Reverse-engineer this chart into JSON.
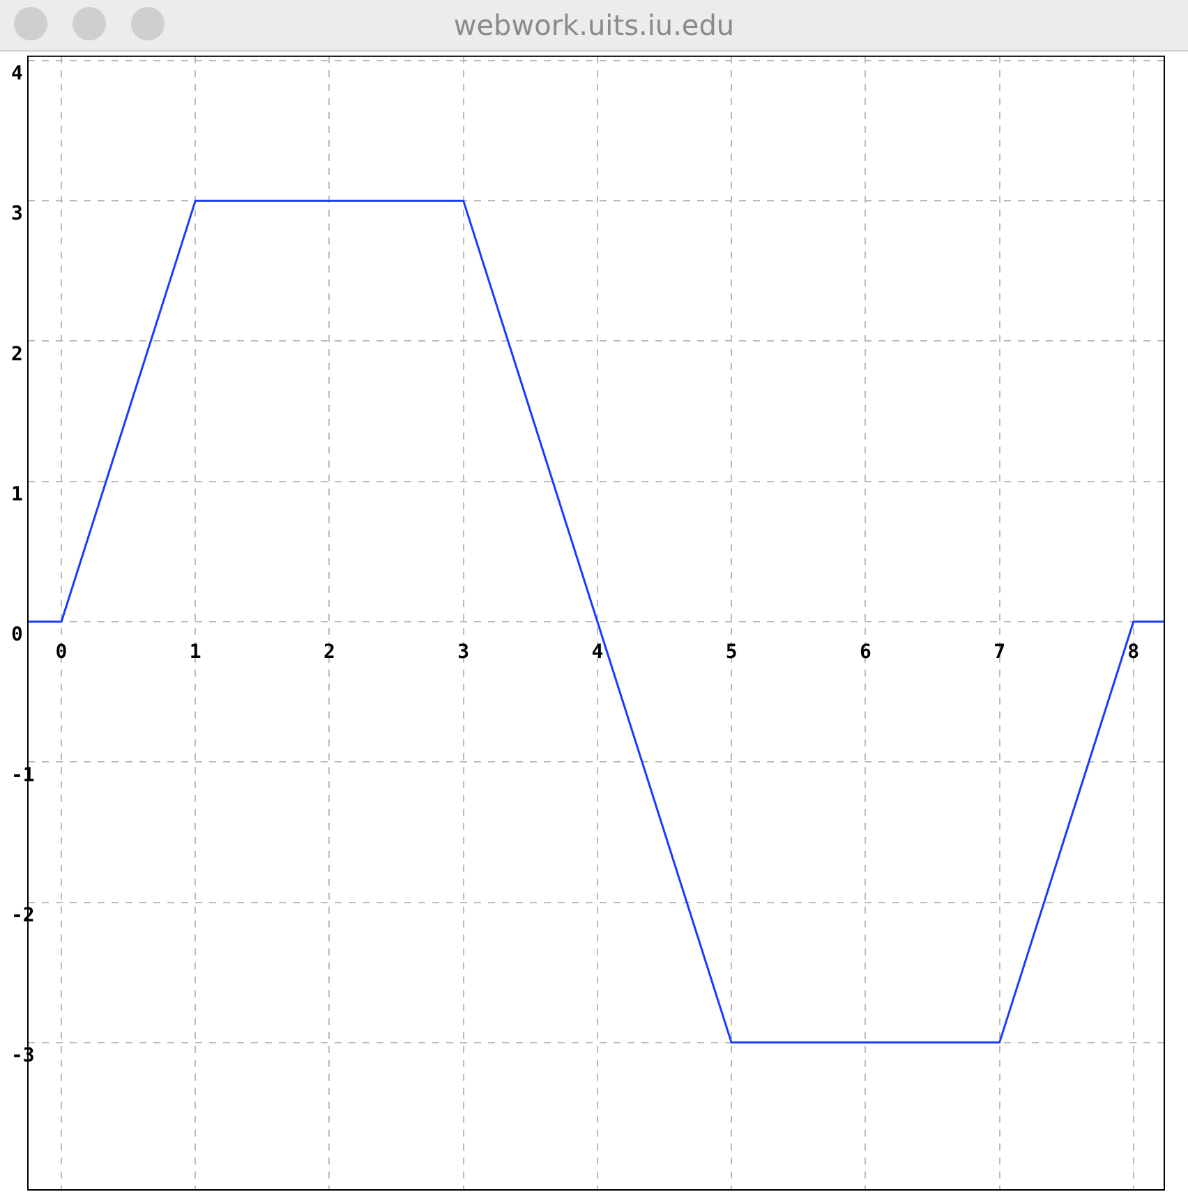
{
  "chart_data": {
    "type": "line",
    "annotations": [
      "webwork.uits.iu.edu"
    ],
    "x": [
      -0.25,
      0,
      1,
      3,
      4,
      5,
      7,
      8,
      8.23
    ],
    "series": [
      {
        "color": "#1a3cff",
        "values": [
          0,
          0,
          3,
          3,
          0,
          -3,
          -3,
          0,
          0
        ]
      }
    ],
    "xlim": [
      -0.25,
      8.23
    ],
    "ylim": [
      -4.05,
      4.03
    ],
    "xticks": [
      0,
      1,
      2,
      3,
      4,
      5,
      6,
      7,
      8
    ],
    "yticks": [
      -3,
      -2,
      -1,
      0,
      1,
      2,
      3,
      4
    ],
    "grid": true,
    "legend": false,
    "marker": "none",
    "line_style": "solid"
  }
}
